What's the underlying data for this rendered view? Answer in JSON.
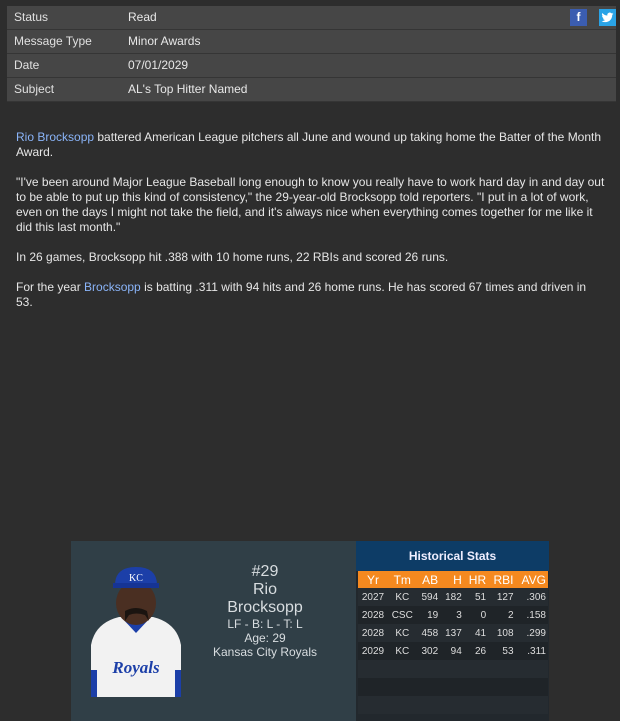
{
  "header": [
    {
      "label": "Status",
      "value": "Read"
    },
    {
      "label": "Message Type",
      "value": "Minor Awards"
    },
    {
      "label": "Date",
      "value": "07/01/2029"
    },
    {
      "label": "Subject",
      "value": "AL's Top Hitter Named"
    }
  ],
  "social": {
    "facebook": "f",
    "twitter": "t"
  },
  "article": {
    "p1_link": "Rio Brocksopp",
    "p1_rest": " battered American League pitchers all June and wound up taking home the Batter of the Month Award.",
    "p2": "\"I've been around Major League Baseball long enough to know you really have to work hard day in and day out to be able to put up this kind of consistency,\" the 29-year-old Brocksopp told reporters. \"I put in a lot of work, even on the days I might not take the field, and it's always nice when everything comes together for me like it did this last month.\"",
    "p3": "In 26 games, Brocksopp hit .388 with 10 home runs, 22 RBIs and scored 26 runs.",
    "p4_pre": "For the year ",
    "p4_link": "Brocksopp",
    "p4_rest": " is batting .311 with 94 hits and 26 home runs. He has scored 67 times and driven in 53."
  },
  "player": {
    "number": "#29",
    "first": "Rio",
    "last": "Brocksopp",
    "pos": "LF - B: L - T: L",
    "age": "Age: 29",
    "team": "Kansas City Royals",
    "cap_logo": "KC",
    "jersey_text": "Royals"
  },
  "stats": {
    "title": "Historical Stats",
    "columns": [
      "Yr",
      "Tm",
      "AB",
      "H",
      "HR",
      "RBI",
      "AVG"
    ],
    "rows": [
      [
        "2027",
        "KC",
        "594",
        "182",
        "51",
        "127",
        ".306"
      ],
      [
        "2028",
        "CSC",
        "19",
        "3",
        "0",
        "2",
        ".158"
      ],
      [
        "2028",
        "KC",
        "458",
        "137",
        "41",
        "108",
        ".299"
      ],
      [
        "2029",
        "KC",
        "302",
        "94",
        "26",
        "53",
        ".311"
      ]
    ]
  }
}
